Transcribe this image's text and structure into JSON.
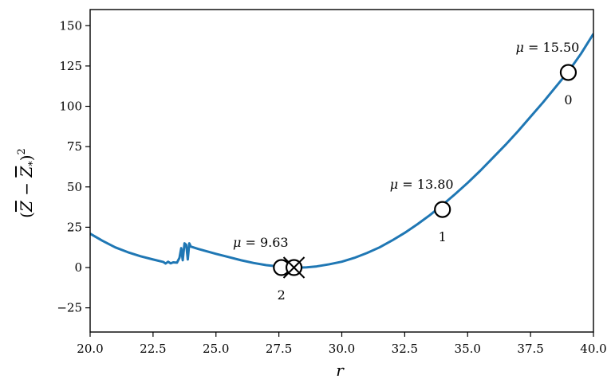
{
  "chart_data": {
    "type": "line",
    "xlabel": "r",
    "ylabel": "(Z̅ − Z̅*)²",
    "xlim": [
      20.0,
      40.0
    ],
    "ylim": [
      -40,
      160
    ],
    "grid": false,
    "line_color": "#1f77b4",
    "xticks": [
      20.0,
      22.5,
      25.0,
      27.5,
      30.0,
      32.5,
      35.0,
      37.5,
      40.0
    ],
    "xtick_labels": [
      "20.0",
      "22.5",
      "25.0",
      "27.5",
      "30.0",
      "32.5",
      "35.0",
      "37.5",
      "40.0"
    ],
    "yticks": [
      -25,
      0,
      25,
      50,
      75,
      100,
      125,
      150
    ],
    "ytick_labels": [
      "−25",
      "0",
      "25",
      "50",
      "75",
      "100",
      "125",
      "150"
    ],
    "series": [
      {
        "x": [
          20.0,
          20.5,
          21.0,
          21.5,
          22.0,
          22.5,
          22.9,
          23.0,
          23.1,
          23.2,
          23.3,
          23.45,
          23.55,
          23.62,
          23.68,
          23.75,
          23.82,
          23.88,
          23.94,
          24.0,
          24.3,
          24.6,
          25.0,
          25.5,
          26.0,
          26.5,
          27.0,
          27.5,
          28.0,
          28.3,
          28.6,
          29.0,
          29.5,
          30.0,
          30.5,
          31.0,
          31.5,
          32.0,
          32.5,
          33.0,
          33.5,
          34.0,
          34.5,
          35.0,
          35.5,
          36.0,
          36.5,
          37.0,
          37.5,
          38.0,
          38.5,
          39.0,
          39.5,
          40.0
        ],
        "y": [
          21.0,
          16.5,
          12.5,
          9.5,
          7.0,
          5.0,
          3.5,
          2.5,
          3.6,
          2.6,
          3.2,
          3.0,
          6.0,
          12.0,
          4.5,
          15.0,
          14.0,
          5.0,
          15.0,
          13.0,
          11.5,
          10.2,
          8.5,
          6.5,
          4.5,
          2.8,
          1.5,
          0.6,
          0.1,
          0.0,
          0.1,
          0.7,
          2.0,
          3.6,
          6.0,
          9.0,
          12.5,
          16.8,
          21.5,
          26.8,
          32.5,
          38.8,
          45.5,
          52.5,
          60.0,
          68.0,
          76.0,
          84.5,
          93.5,
          102.5,
          112.0,
          121.5,
          132.5,
          145.0
        ]
      }
    ],
    "markers": [
      {
        "x": 39.0,
        "y": 121.0,
        "label": "0",
        "annotation": "μ = 15.50",
        "crossed": false
      },
      {
        "x": 34.0,
        "y": 36.0,
        "label": "1",
        "annotation": "μ = 13.80",
        "crossed": false
      },
      {
        "x": 27.6,
        "y": 0.0,
        "label": "2",
        "annotation": "μ = 9.63",
        "crossed": false
      },
      {
        "x": 28.1,
        "y": 0.0,
        "label": "",
        "annotation": "",
        "crossed": true
      }
    ]
  }
}
